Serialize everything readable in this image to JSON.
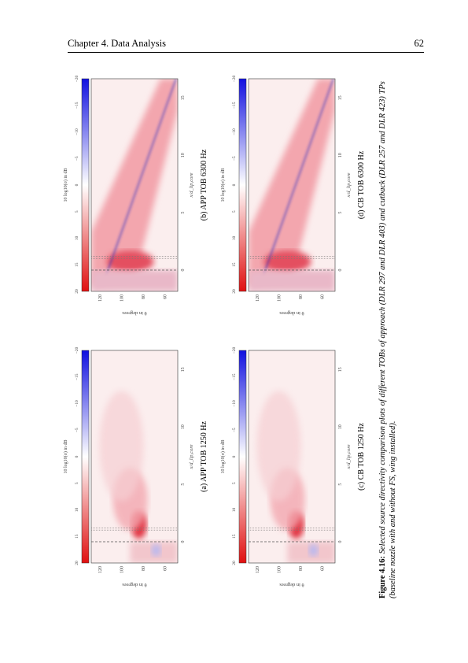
{
  "header": {
    "chapter": "Chapter 4.  Data Analysis",
    "page": "62"
  },
  "figure": {
    "axes": {
      "x_label": "x/d_lip,core",
      "y_label": "θ in degrees",
      "colorbar_label": "10 log10(σ) in dB",
      "x_ticks": [
        "0",
        "5",
        "10",
        "15"
      ],
      "y_ticks": [
        "120",
        "100",
        "80",
        "60"
      ],
      "colorbar_ticks": [
        "20",
        "15",
        "10",
        "5",
        "0",
        "−5",
        "−10",
        "−15",
        "−20"
      ]
    },
    "panels": [
      {
        "label": "(a) APP TOB 1250 Hz"
      },
      {
        "label": "(b) APP TOB 6300 Hz"
      },
      {
        "label": "(c) CB TOB 1250 Hz"
      },
      {
        "label": "(d) CB TOB 6300 Hz"
      }
    ],
    "caption": {
      "label": "Figure 4.16:",
      "text": "Selected source directivity comparison plots of different TOBs of approach (DLR 297 and DLR 403) and cutback (DLR 257 and DLR 423) TPs (baseline nozzle with and without FS, wing installed)."
    }
  }
}
